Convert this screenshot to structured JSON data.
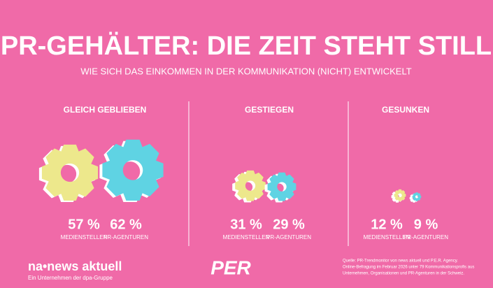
{
  "title": "PR-GEHÄLTER: DIE ZEIT STEHT STILL",
  "subtitle": "WIE SICH DAS EINKOMMEN IN DER KOMMUNIKATION (NICHT) ENTWICKELT",
  "groups": [
    {
      "heading": "GLEICH GEBLIEBEN",
      "items": [
        {
          "value": 57,
          "label": "57 %",
          "caption": "MEDIENSTELLEN",
          "color": "#ede88c"
        },
        {
          "value": 62,
          "label": "62 %",
          "caption": "PR-AGENTUREN",
          "color": "#5fd3e3"
        }
      ]
    },
    {
      "heading": "GESTIEGEN",
      "items": [
        {
          "value": 31,
          "label": "31 %",
          "caption": "MEDIENSTELLEN",
          "color": "#ede88c"
        },
        {
          "value": 29,
          "label": "29 %",
          "caption": "PR-AGENTUREN",
          "color": "#5fd3e3"
        }
      ]
    },
    {
      "heading": "GESUNKEN",
      "items": [
        {
          "value": 12,
          "label": "12 %",
          "caption": "MEDIENSTELLEN",
          "color": "#ede88c"
        },
        {
          "value": 9,
          "label": "9 %",
          "caption": "PR-AGENTUREN",
          "color": "#5fd3e3"
        }
      ]
    }
  ],
  "footer": {
    "brand": "na•news aktuell",
    "brand_sub": "Ein Unternehmen der dpa-Gruppe",
    "logo": "PER",
    "source": [
      "Quelle: PR-Trendmonitor von news aktuell und P.E.R. Agency.",
      "Online-Befragung im Februar 2026 unter 79 Kommunikationsprofis aus",
      "Unternehmen, Organisationen und PR-Agenturen in der Schweiz."
    ]
  }
}
